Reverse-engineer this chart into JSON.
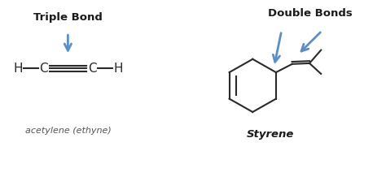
{
  "bg_color": "#ffffff",
  "triple_bond_label": "Triple Bond",
  "double_bonds_label": "Double Bonds",
  "acetylene_label": "acetylene (ethyne)",
  "styrene_label": "Styrene",
  "arrow_color": "#5b8ec4",
  "line_color": "#2a2a2a",
  "text_color": "#1a1a1a",
  "label_color": "#555555",
  "figsize": [
    4.74,
    2.34
  ],
  "dpi": 100
}
